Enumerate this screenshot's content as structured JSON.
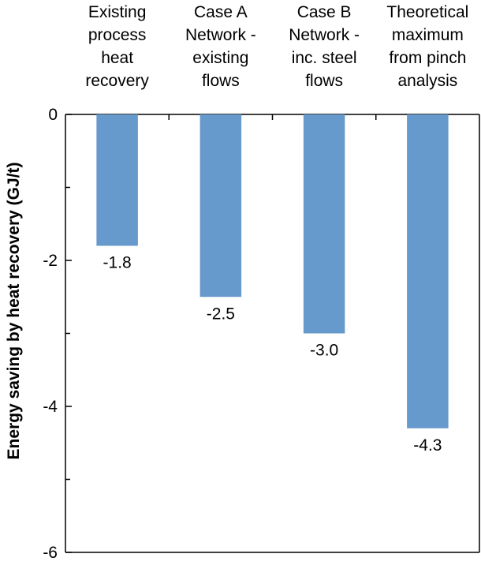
{
  "chart_data": {
    "type": "bar",
    "categories": [
      [
        "Existing",
        "process",
        "heat",
        "recovery"
      ],
      [
        "Case A",
        "Network -",
        "existing",
        "flows"
      ],
      [
        "Case B",
        "Network -",
        "inc. steel",
        "flows"
      ],
      [
        "Theoretical",
        "maximum",
        "from pinch",
        "analysis"
      ]
    ],
    "values": [
      -1.8,
      -2.5,
      -3.0,
      -4.3
    ],
    "value_labels": [
      "-1.8",
      "-2.5",
      "-3.0",
      "-4.3"
    ],
    "ylabel": "Energy saving by heat recovery  (GJ/t)",
    "ylim": [
      -6,
      0
    ],
    "yticks": [
      0,
      -2,
      -4,
      -6
    ],
    "grid": false,
    "legend": "none",
    "bar_color": "#6699cc"
  }
}
